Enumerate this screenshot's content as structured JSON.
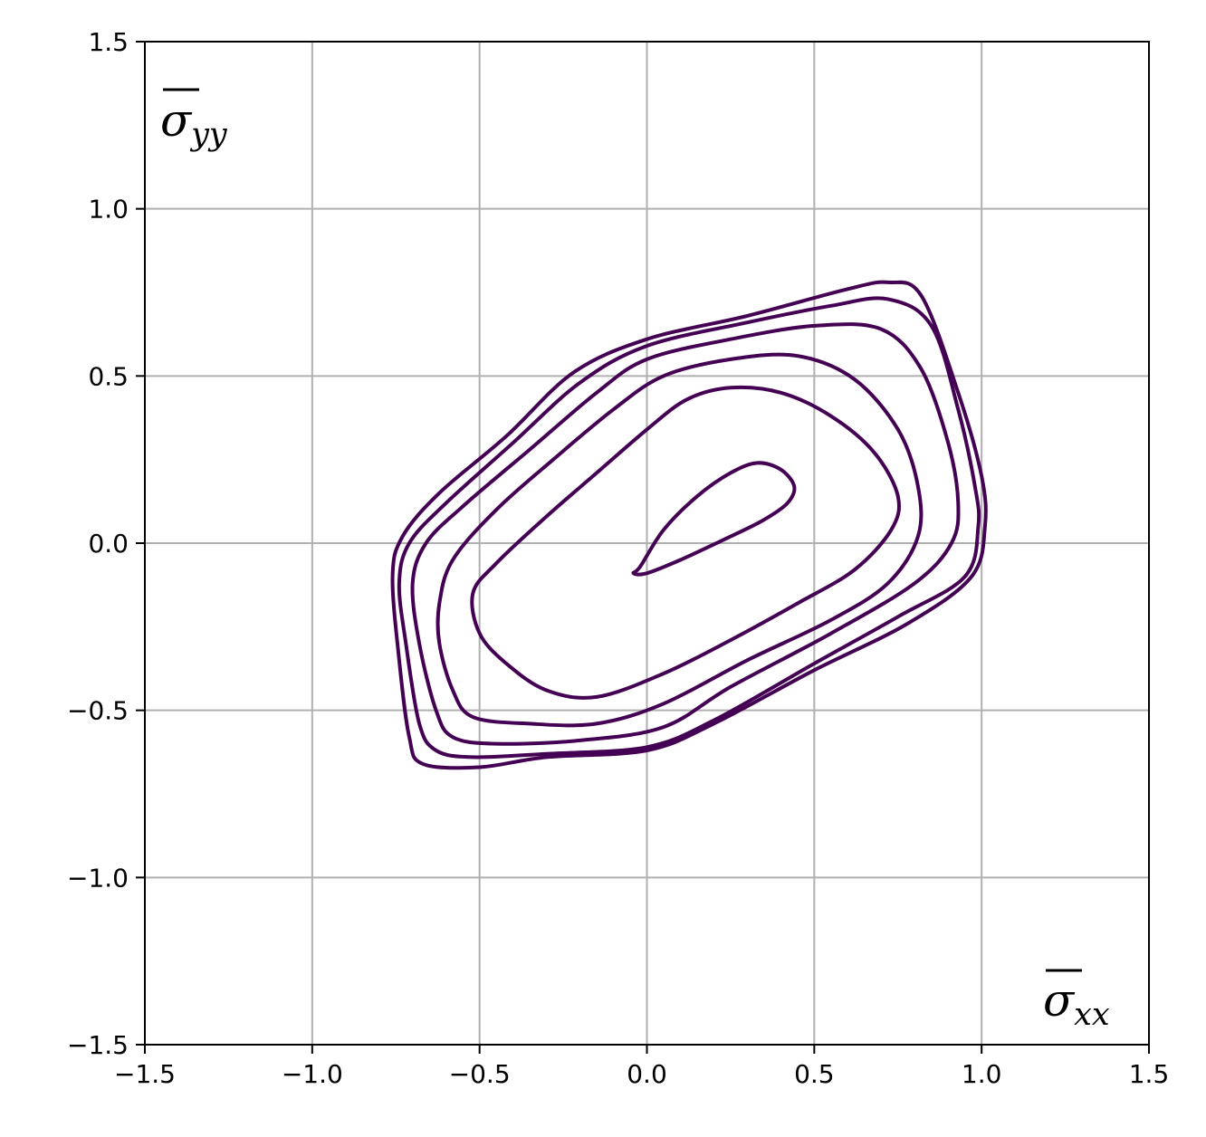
{
  "chart_data": {
    "type": "line",
    "title": "",
    "xlabel": "σ̄xx",
    "ylabel": "σ̄yy",
    "xlabel_parts": {
      "base": "σ",
      "sub": "xx"
    },
    "ylabel_parts": {
      "base": "σ",
      "sub": "yy"
    },
    "xlim": [
      -1.5,
      1.5
    ],
    "ylim": [
      -1.5,
      1.5
    ],
    "xticks": [
      -1.5,
      -1.0,
      -0.5,
      0.0,
      0.5,
      1.0,
      1.5
    ],
    "yticks": [
      -1.5,
      -1.0,
      -0.5,
      0.0,
      0.5,
      1.0,
      1.5
    ],
    "xtick_labels": [
      "−1.5",
      "−1.0",
      "−0.5",
      "0.0",
      "0.5",
      "1.0",
      "1.5"
    ],
    "ytick_labels": [
      "−1.5",
      "−1.0",
      "−0.5",
      "0.0",
      "0.5",
      "1.0",
      "1.5"
    ],
    "grid": true,
    "line_color": "#440154",
    "grid_color": "#b0b0b0",
    "series": [
      {
        "points": [
          [
            -0.02,
            -0.07
          ],
          [
            0.05,
            0.04
          ],
          [
            0.15,
            0.14
          ],
          [
            0.25,
            0.21
          ],
          [
            0.33,
            0.24
          ],
          [
            0.4,
            0.22
          ],
          [
            0.44,
            0.17
          ],
          [
            0.42,
            0.12
          ],
          [
            0.35,
            0.07
          ],
          [
            0.25,
            0.02
          ],
          [
            0.1,
            -0.05
          ],
          [
            0.0,
            -0.09
          ],
          [
            -0.04,
            -0.09
          ],
          [
            -0.02,
            -0.07
          ]
        ]
      },
      {
        "points": [
          [
            -0.52,
            -0.15
          ],
          [
            -0.45,
            -0.06
          ],
          [
            -0.3,
            0.08
          ],
          [
            -0.15,
            0.21
          ],
          [
            0.0,
            0.34
          ],
          [
            0.12,
            0.43
          ],
          [
            0.25,
            0.465
          ],
          [
            0.4,
            0.45
          ],
          [
            0.55,
            0.38
          ],
          [
            0.68,
            0.27
          ],
          [
            0.75,
            0.14
          ],
          [
            0.73,
            0.04
          ],
          [
            0.62,
            -0.08
          ],
          [
            0.45,
            -0.18
          ],
          [
            0.25,
            -0.29
          ],
          [
            0.05,
            -0.39
          ],
          [
            -0.15,
            -0.46
          ],
          [
            -0.3,
            -0.44
          ],
          [
            -0.42,
            -0.36
          ],
          [
            -0.5,
            -0.27
          ],
          [
            -0.52,
            -0.15
          ]
        ]
      },
      {
        "points": [
          [
            -0.62,
            -0.18
          ],
          [
            -0.58,
            -0.05
          ],
          [
            -0.45,
            0.1
          ],
          [
            -0.28,
            0.25
          ],
          [
            -0.1,
            0.4
          ],
          [
            0.05,
            0.5
          ],
          [
            0.25,
            0.55
          ],
          [
            0.45,
            0.56
          ],
          [
            0.62,
            0.49
          ],
          [
            0.75,
            0.34
          ],
          [
            0.81,
            0.17
          ],
          [
            0.81,
            0.02
          ],
          [
            0.72,
            -0.12
          ],
          [
            0.55,
            -0.23
          ],
          [
            0.3,
            -0.35
          ],
          [
            0.05,
            -0.48
          ],
          [
            -0.15,
            -0.54
          ],
          [
            -0.35,
            -0.54
          ],
          [
            -0.52,
            -0.52
          ],
          [
            -0.58,
            -0.44
          ],
          [
            -0.62,
            -0.3
          ],
          [
            -0.62,
            -0.18
          ]
        ]
      },
      {
        "points": [
          [
            -0.7,
            -0.12
          ],
          [
            -0.66,
            0.0
          ],
          [
            -0.55,
            0.11
          ],
          [
            -0.35,
            0.28
          ],
          [
            -0.15,
            0.45
          ],
          [
            0.0,
            0.55
          ],
          [
            0.25,
            0.61
          ],
          [
            0.5,
            0.65
          ],
          [
            0.7,
            0.64
          ],
          [
            0.82,
            0.52
          ],
          [
            0.9,
            0.3
          ],
          [
            0.93,
            0.12
          ],
          [
            0.91,
            0.0
          ],
          [
            0.8,
            -0.12
          ],
          [
            0.55,
            -0.27
          ],
          [
            0.25,
            -0.43
          ],
          [
            0.05,
            -0.55
          ],
          [
            -0.2,
            -0.59
          ],
          [
            -0.45,
            -0.6
          ],
          [
            -0.58,
            -0.58
          ],
          [
            -0.63,
            -0.5
          ],
          [
            -0.68,
            -0.3
          ],
          [
            -0.7,
            -0.12
          ]
        ]
      },
      {
        "points": [
          [
            -0.74,
            -0.12
          ],
          [
            -0.71,
            0.0
          ],
          [
            -0.6,
            0.12
          ],
          [
            -0.4,
            0.3
          ],
          [
            -0.2,
            0.48
          ],
          [
            0.0,
            0.59
          ],
          [
            0.3,
            0.66
          ],
          [
            0.55,
            0.71
          ],
          [
            0.72,
            0.73
          ],
          [
            0.85,
            0.65
          ],
          [
            0.93,
            0.4
          ],
          [
            0.98,
            0.17
          ],
          [
            0.99,
            0.05
          ],
          [
            0.95,
            -0.1
          ],
          [
            0.75,
            -0.22
          ],
          [
            0.5,
            -0.36
          ],
          [
            0.2,
            -0.53
          ],
          [
            0.0,
            -0.61
          ],
          [
            -0.3,
            -0.63
          ],
          [
            -0.52,
            -0.64
          ],
          [
            -0.63,
            -0.62
          ],
          [
            -0.68,
            -0.54
          ],
          [
            -0.72,
            -0.3
          ],
          [
            -0.74,
            -0.12
          ]
        ]
      },
      {
        "points": [
          [
            -0.76,
            -0.1
          ],
          [
            -0.73,
            0.02
          ],
          [
            -0.62,
            0.15
          ],
          [
            -0.42,
            0.32
          ],
          [
            -0.22,
            0.51
          ],
          [
            0.0,
            0.61
          ],
          [
            0.3,
            0.68
          ],
          [
            0.6,
            0.76
          ],
          [
            0.72,
            0.78
          ],
          [
            0.82,
            0.74
          ],
          [
            0.93,
            0.45
          ],
          [
            1.0,
            0.2
          ],
          [
            1.01,
            0.05
          ],
          [
            0.97,
            -0.1
          ],
          [
            0.78,
            -0.24
          ],
          [
            0.5,
            -0.38
          ],
          [
            0.2,
            -0.54
          ],
          [
            0.0,
            -0.62
          ],
          [
            -0.3,
            -0.64
          ],
          [
            -0.5,
            -0.67
          ],
          [
            -0.67,
            -0.66
          ],
          [
            -0.71,
            -0.58
          ],
          [
            -0.74,
            -0.35
          ],
          [
            -0.76,
            -0.1
          ]
        ]
      }
    ]
  }
}
